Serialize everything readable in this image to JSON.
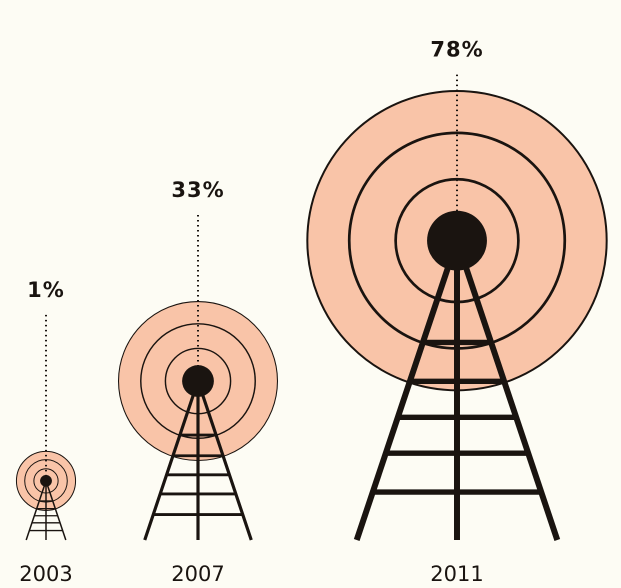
{
  "chart_data": {
    "type": "pictogram",
    "categories": [
      "2003",
      "2007",
      "2011"
    ],
    "values": [
      1,
      33,
      78
    ],
    "value_labels": [
      "1%",
      "33%",
      "78%"
    ],
    "color": "#f9c4a8"
  }
}
